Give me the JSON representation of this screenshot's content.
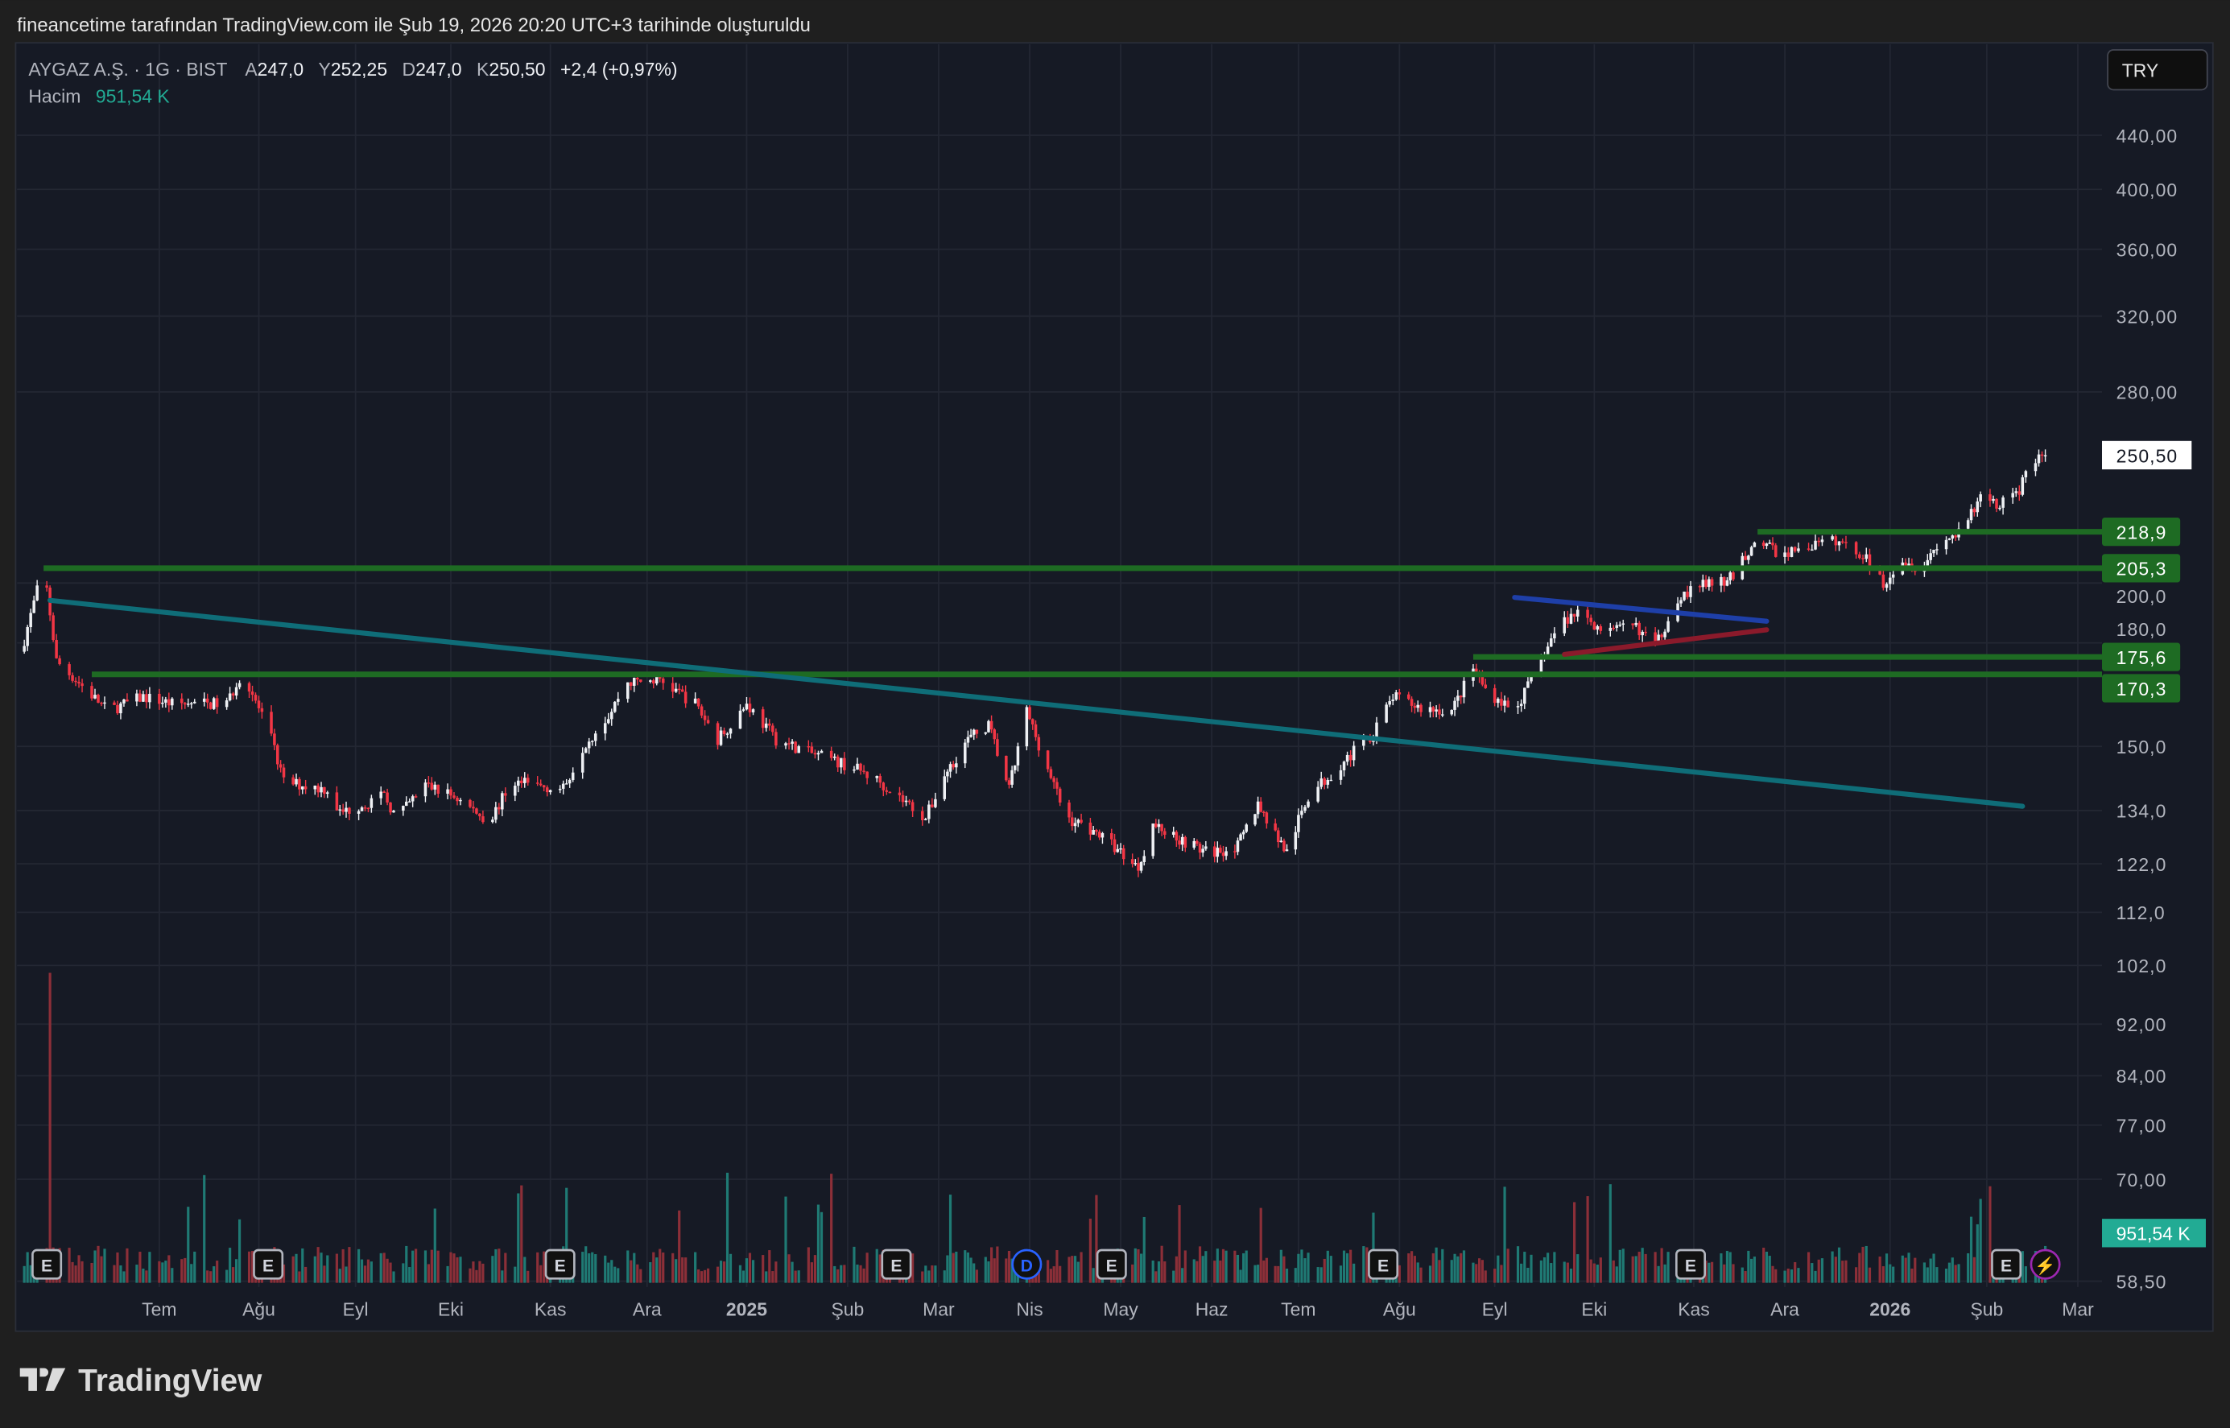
{
  "caption": "fineancetime tarafından TradingView.com ile Şub 19, 2026 20:20 UTC+3 tarihinde oluşturuldu",
  "legend": {
    "symbol": "AYGAZ A.Ş. · 1G · BIST",
    "open_label": "A",
    "open": "247,0",
    "high_label": "Y",
    "high": "252,25",
    "low_label": "D",
    "low": "247,0",
    "close_label": "K",
    "close": "250,50",
    "change": "+2,4 (+0,97%)",
    "volume_label": "Hacim",
    "volume": "951,54 K"
  },
  "currency_button": "TRY",
  "footer_logo": "TradingView",
  "colors": {
    "background": "#161a25",
    "up": "#eef0f4",
    "down": "#f23645",
    "vol_up": "#1f7a74",
    "vol_down": "#8c2f38",
    "level": "#1e6b23",
    "trend": "#0f6d78",
    "blue": "#1e3fa8",
    "darkred": "#8b1a2b",
    "volume_badge": "#22ab94"
  },
  "chart_data": {
    "type": "candlestick",
    "scale": "log",
    "ylim": [
      58.5,
      440
    ],
    "grid": true,
    "y_ticks": [
      "440,00",
      "400,00",
      "360,00",
      "320,00",
      "280,00",
      "200,0",
      "180,0",
      "150,0",
      "134,0",
      "122,0",
      "112,0",
      "102,0",
      "92,00",
      "84,00",
      "77,00",
      "70,00",
      "58,50"
    ],
    "y_tick_values": [
      440,
      400,
      360,
      320,
      280,
      200,
      180,
      150,
      134,
      122,
      112,
      102,
      92,
      84,
      77,
      70,
      58.5
    ],
    "x_ticks": [
      {
        "label": "Tem",
        "date": "2024-07-01"
      },
      {
        "label": "Ağu",
        "date": "2024-08-01"
      },
      {
        "label": "Eyl",
        "date": "2024-09-01"
      },
      {
        "label": "Eki",
        "date": "2024-10-01"
      },
      {
        "label": "Kas",
        "date": "2024-11-01"
      },
      {
        "label": "Ara",
        "date": "2024-12-01"
      },
      {
        "label": "2025",
        "date": "2025-01-01",
        "bold": true
      },
      {
        "label": "Şub",
        "date": "2025-02-01"
      },
      {
        "label": "Mar",
        "date": "2025-03-01"
      },
      {
        "label": "Nis",
        "date": "2025-04-01"
      },
      {
        "label": "May",
        "date": "2025-05-01"
      },
      {
        "label": "Haz",
        "date": "2025-06-01"
      },
      {
        "label": "Tem",
        "date": "2025-07-01"
      },
      {
        "label": "Ağu",
        "date": "2025-08-01"
      },
      {
        "label": "Eyl",
        "date": "2025-09-01"
      },
      {
        "label": "Eki",
        "date": "2025-10-01"
      },
      {
        "label": "Kas",
        "date": "2025-11-01"
      },
      {
        "label": "Ara",
        "date": "2025-12-01"
      },
      {
        "label": "2026",
        "date": "2026-01-01",
        "bold": true
      },
      {
        "label": "Şub",
        "date": "2026-02-01"
      },
      {
        "label": "Mar",
        "date": "2026-03-01"
      }
    ],
    "price_path": [
      [
        "2024-05-20",
        181
      ],
      [
        "2024-05-26",
        206
      ],
      [
        "2024-05-30",
        174.3
      ],
      [
        "2024-06-15",
        159.7
      ],
      [
        "2024-06-26",
        163.7
      ],
      [
        "2024-07-05",
        161.7
      ],
      [
        "2024-07-22",
        161.7
      ],
      [
        "2024-07-27",
        171.2
      ],
      [
        "2024-08-05",
        151.9
      ],
      [
        "2024-08-09",
        140.9
      ],
      [
        "2024-08-23",
        139.1
      ],
      [
        "2024-08-27",
        133.4
      ],
      [
        "2024-09-10",
        137.4
      ],
      [
        "2024-09-14",
        132.3
      ],
      [
        "2024-09-23",
        140.2
      ],
      [
        "2024-10-02",
        137.4
      ],
      [
        "2024-10-13",
        131.4
      ],
      [
        "2024-10-20",
        140.9
      ],
      [
        "2024-11-05",
        139.1
      ],
      [
        "2024-11-11",
        149.9
      ],
      [
        "2024-11-20",
        159.7
      ],
      [
        "2024-11-24",
        167.8
      ],
      [
        "2024-12-05",
        168.7
      ],
      [
        "2024-12-16",
        161.7
      ],
      [
        "2024-12-23",
        151.9
      ],
      [
        "2025-01-01",
        161.7
      ],
      [
        "2025-01-10",
        151.9
      ],
      [
        "2025-01-21",
        148.1
      ],
      [
        "2025-02-03",
        144.5
      ],
      [
        "2025-02-11",
        140.9
      ],
      [
        "2025-02-25",
        132.3
      ],
      [
        "2025-03-03",
        142.6
      ],
      [
        "2025-03-11",
        151.9
      ],
      [
        "2025-03-18",
        155.7
      ],
      [
        "2025-03-25",
        139.1
      ],
      [
        "2025-03-31",
        159.7
      ],
      [
        "2025-04-06",
        146.2
      ],
      [
        "2025-04-13",
        132.3
      ],
      [
        "2025-04-23",
        129.0
      ],
      [
        "2025-05-07",
        121.3
      ],
      [
        "2025-05-12",
        130.7
      ],
      [
        "2025-05-21",
        127.5
      ],
      [
        "2025-05-31",
        124.3
      ],
      [
        "2025-06-10",
        125.8
      ],
      [
        "2025-06-17",
        135.6
      ],
      [
        "2025-06-27",
        124.3
      ],
      [
        "2025-07-04",
        137.4
      ],
      [
        "2025-07-15",
        146.2
      ],
      [
        "2025-07-24",
        153.7
      ],
      [
        "2025-07-30",
        163.7
      ],
      [
        "2025-08-08",
        160.5
      ],
      [
        "2025-08-18",
        159.7
      ],
      [
        "2025-08-25",
        172.1
      ],
      [
        "2025-08-29",
        165.8
      ],
      [
        "2025-09-07",
        159.7
      ],
      [
        "2025-09-13",
        170.1
      ],
      [
        "2025-09-20",
        185.5
      ],
      [
        "2025-09-26",
        190.2
      ],
      [
        "2025-10-05",
        183.2
      ],
      [
        "2025-10-14",
        185.5
      ],
      [
        "2025-10-20",
        178.7
      ],
      [
        "2025-10-27",
        195.0
      ],
      [
        "2025-11-05",
        200.0
      ],
      [
        "2025-11-12",
        200.0
      ],
      [
        "2025-11-22",
        216.6
      ],
      [
        "2025-11-29",
        210.2
      ],
      [
        "2025-12-07",
        213.0
      ],
      [
        "2025-12-16",
        215.5
      ],
      [
        "2025-12-24",
        210.2
      ],
      [
        "2025-12-30",
        200.0
      ],
      [
        "2026-01-04",
        208.7
      ],
      [
        "2026-01-11",
        205.3
      ],
      [
        "2026-01-17",
        215.5
      ],
      [
        "2026-01-24",
        218.3
      ],
      [
        "2026-01-31",
        235.3
      ],
      [
        "2026-02-04",
        229.5
      ],
      [
        "2026-02-11",
        235.3
      ],
      [
        "2026-02-13",
        244.4
      ],
      [
        "2026-02-19",
        250.5
      ]
    ],
    "price_labels": [
      {
        "text": "250,50",
        "value": 250.5,
        "type": "last"
      },
      {
        "text": "218,9",
        "value": 218.9,
        "type": "level"
      },
      {
        "text": "205,3",
        "value": 205.3,
        "type": "level"
      },
      {
        "text": "175,6",
        "value": 175.6,
        "type": "level"
      },
      {
        "text": "170,3",
        "value": 170.3,
        "type": "level"
      }
    ],
    "drawings": [
      {
        "kind": "hline",
        "value": 205.3,
        "from": "2024-05-26",
        "color": "level"
      },
      {
        "kind": "hline",
        "value": 170.3,
        "from": "2024-06-10",
        "color": "level"
      },
      {
        "kind": "hline",
        "value": 175.6,
        "from": "2025-08-25",
        "color": "level"
      },
      {
        "kind": "hline",
        "value": 218.9,
        "from": "2025-11-22",
        "color": "level"
      },
      {
        "kind": "trend",
        "from": [
          "2024-05-28",
          194
        ],
        "to": [
          "2026-02-12",
          135
        ],
        "color": "trend"
      },
      {
        "kind": "trend",
        "from": [
          "2025-09-07",
          195
        ],
        "to": [
          "2025-11-25",
          187
        ],
        "color": "blue"
      },
      {
        "kind": "trend",
        "from": [
          "2025-09-22",
          176.4
        ],
        "to": [
          "2025-11-25",
          184.2
        ],
        "color": "darkred"
      }
    ],
    "events": [
      {
        "type": "E",
        "date": "2024-05-27"
      },
      {
        "type": "E",
        "date": "2024-08-04"
      },
      {
        "type": "E",
        "date": "2024-11-04"
      },
      {
        "type": "E",
        "date": "2025-02-16"
      },
      {
        "type": "D",
        "date": "2025-03-31"
      },
      {
        "type": "E",
        "date": "2025-04-28"
      },
      {
        "type": "E",
        "date": "2025-07-27"
      },
      {
        "type": "E",
        "date": "2025-10-31"
      },
      {
        "type": "E",
        "date": "2026-02-07"
      },
      {
        "type": "⚡",
        "date": "2026-02-19"
      }
    ]
  }
}
